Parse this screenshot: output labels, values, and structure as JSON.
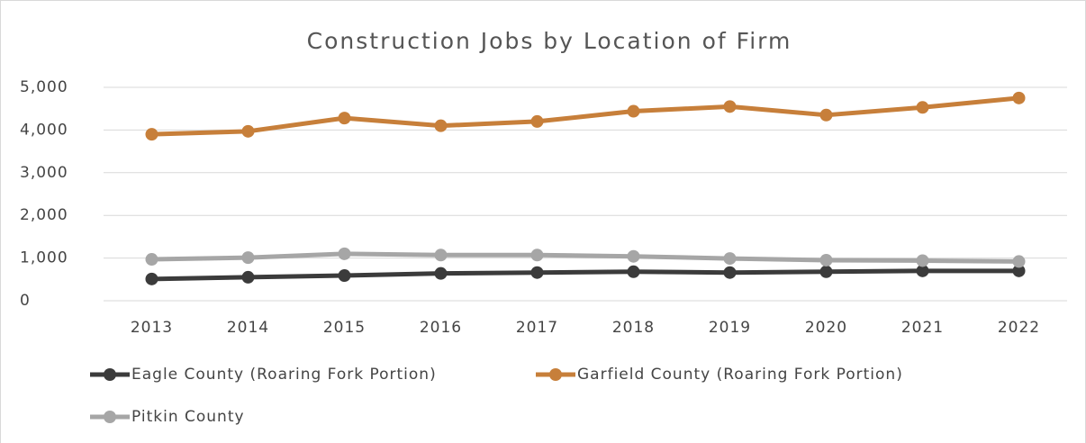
{
  "chart_data": {
    "type": "line",
    "title": "Construction Jobs by Location of Firm",
    "categories": [
      "2013",
      "2014",
      "2015",
      "2016",
      "2017",
      "2018",
      "2019",
      "2020",
      "2021",
      "2022"
    ],
    "series": [
      {
        "name": "Eagle County (Roaring Fork Portion)",
        "color": "#3b3b3b",
        "values": [
          510,
          550,
          590,
          640,
          660,
          680,
          660,
          680,
          700,
          700
        ]
      },
      {
        "name": "Garfield County (Roaring Fork Portion)",
        "color": "#c77f3a",
        "values": [
          3900,
          3970,
          4280,
          4100,
          4200,
          4440,
          4550,
          4350,
          4530,
          4750
        ]
      },
      {
        "name": "Pitkin County",
        "color": "#a6a6a6",
        "values": [
          970,
          1010,
          1100,
          1070,
          1070,
          1040,
          990,
          950,
          940,
          920
        ]
      }
    ],
    "ylim": [
      0,
      5000
    ],
    "yticks": [
      0,
      {
        "value": 1000,
        "label": "1,000"
      },
      {
        "value": 2000,
        "label": "2,000"
      },
      {
        "value": 3000,
        "label": "3,000"
      },
      {
        "value": 4000,
        "label": "4,000"
      },
      {
        "value": 5000,
        "label": "5,000"
      }
    ],
    "grid": true,
    "legend": "bottom"
  }
}
